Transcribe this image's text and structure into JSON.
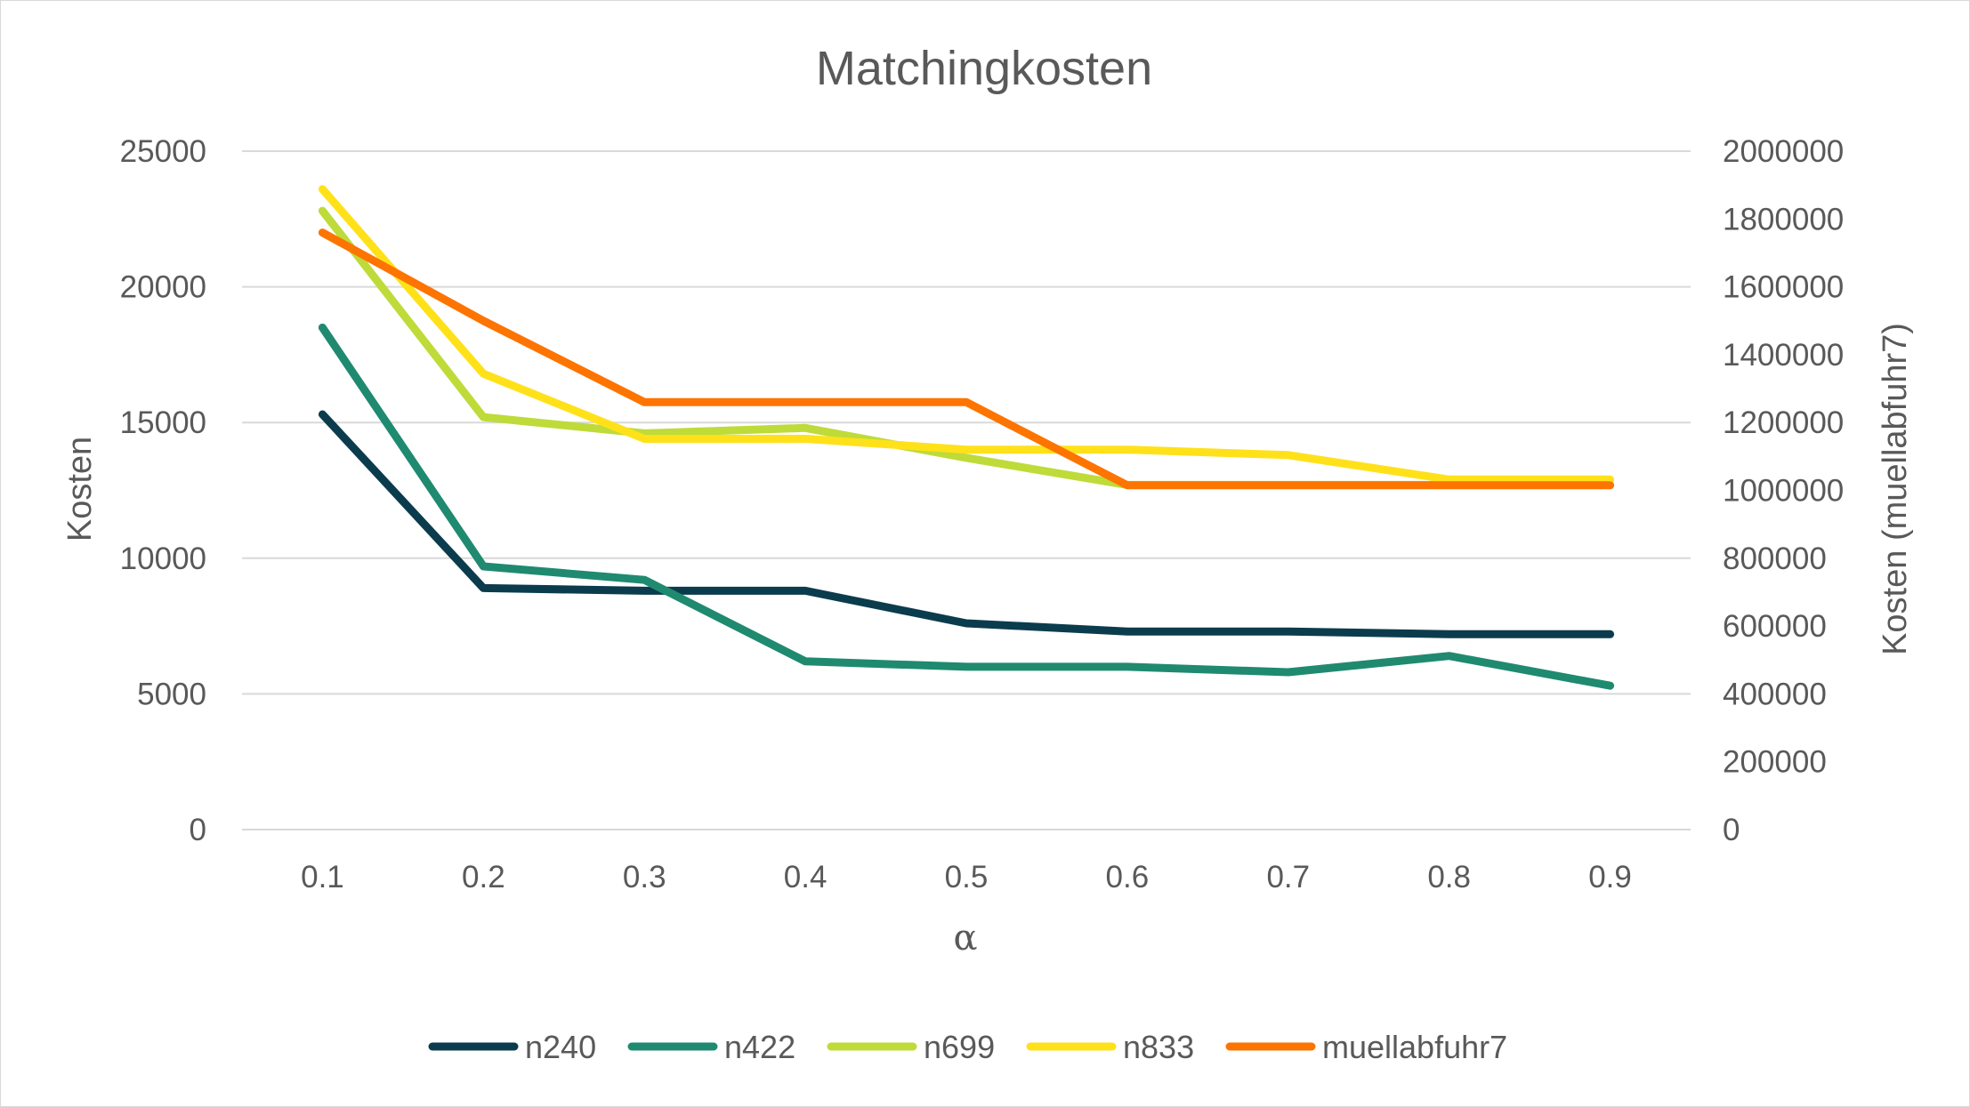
{
  "chart_data": {
    "type": "line",
    "title": "Matchingkosten",
    "xlabel": "α",
    "ylabel": "Kosten",
    "y2label": "Kosten (muellabfuhr7)",
    "x": [
      "0.1",
      "0.2",
      "0.3",
      "0.4",
      "0.5",
      "0.6",
      "0.7",
      "0.8",
      "0.9"
    ],
    "ylim": [
      0,
      25000
    ],
    "yticks": [
      "0",
      "5000",
      "10000",
      "15000",
      "20000",
      "25000"
    ],
    "y2lim": [
      0,
      2000000
    ],
    "y2ticks": [
      "0",
      "200000",
      "400000",
      "600000",
      "800000",
      "1000000",
      "1200000",
      "1400000",
      "1600000",
      "1800000",
      "2000000"
    ],
    "grid": true,
    "legend_position": "bottom",
    "series": [
      {
        "name": "n240",
        "axis": "left",
        "color": "#0b3c4d",
        "values": [
          15300,
          8900,
          8800,
          8800,
          7600,
          7300,
          7300,
          7200,
          7200
        ]
      },
      {
        "name": "n422",
        "axis": "left",
        "color": "#1f8a70",
        "values": [
          18500,
          9700,
          9200,
          6200,
          6000,
          6000,
          5800,
          6400,
          5300
        ]
      },
      {
        "name": "n699",
        "axis": "left",
        "color": "#bedb39",
        "values": [
          22800,
          15200,
          14600,
          14800,
          13700,
          12700,
          12700,
          12700,
          12700
        ]
      },
      {
        "name": "n833",
        "axis": "left",
        "color": "#ffe11a",
        "values": [
          23600,
          16800,
          14400,
          14400,
          14000,
          14000,
          13800,
          12900,
          12900
        ]
      },
      {
        "name": "muellabfuhr7",
        "axis": "right",
        "color": "#fd7400",
        "values": [
          1760000,
          1500000,
          1260000,
          1260000,
          1260000,
          1015000,
          1015000,
          1015000,
          1015000
        ]
      }
    ]
  }
}
